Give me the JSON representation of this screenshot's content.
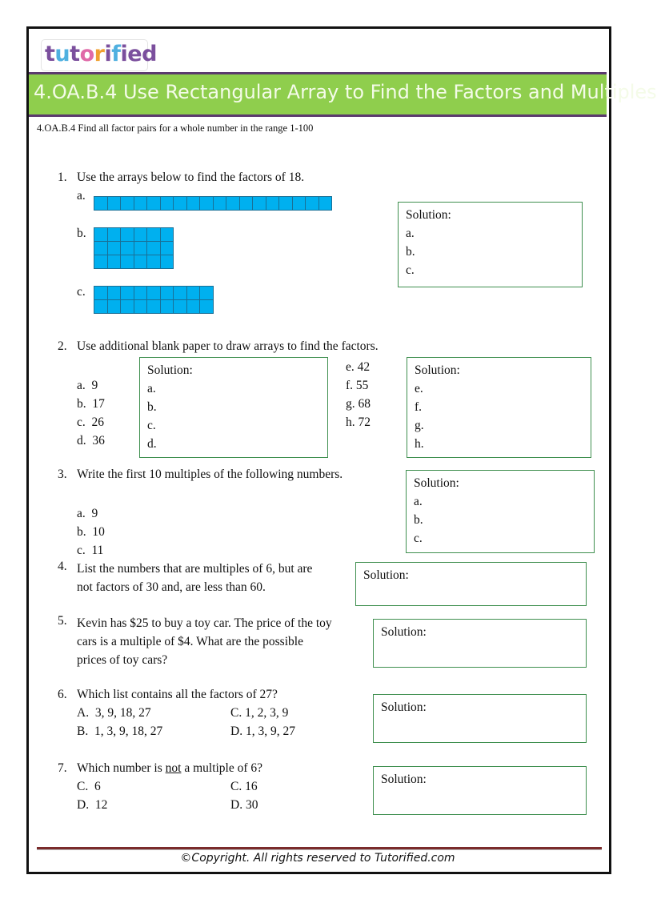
{
  "logo": {
    "letters": [
      "t",
      "u",
      "t",
      "o",
      "r",
      "i",
      "f",
      "i",
      "e",
      "d"
    ],
    "colors": [
      "#7b4f9d",
      "#4fb0e0",
      "#7b4f9d",
      "#e06aa8",
      "#f0a030",
      "#7b4f9d",
      "#4fb0e0",
      "#7b4f9d",
      "#7b4f9d",
      "#7b4f9d"
    ]
  },
  "title": "4.OA.B.4 Use Rectangular Array to Find the Factors and Multiples",
  "standard": "4.OA.B.4 Find all factor pairs for a whole number in the range 1-100",
  "colors": {
    "banner": "#8fce4d",
    "array": "#00b0ef",
    "box_border": "#3f8f4f"
  },
  "q1": {
    "num": "1.",
    "text": "Use the arrays below to find the factors of 18.",
    "labels": [
      "a.",
      "b.",
      "c."
    ],
    "arrays": [
      {
        "cols": 18,
        "rows": 1
      },
      {
        "cols": 6,
        "rows": 3
      },
      {
        "cols": 9,
        "rows": 2
      }
    ],
    "solution": {
      "title": "Solution:",
      "lines": [
        "a.",
        "b.",
        "c."
      ]
    }
  },
  "q2": {
    "num": "2.",
    "text": "Use additional blank paper to draw arrays to find the factors.",
    "items_left": [
      "a.  9",
      "b.  17",
      "c.  26",
      "d.  36"
    ],
    "items_right": [
      "e. 42",
      "f. 55",
      "g. 68",
      "h. 72"
    ],
    "solution1": {
      "title": "Solution:",
      "lines": [
        "a.",
        "b.",
        "c.",
        "d."
      ]
    },
    "solution2": {
      "title": "Solution:",
      "lines": [
        "e.",
        "f.",
        "g.",
        "h."
      ]
    }
  },
  "q3": {
    "num": "3.",
    "text": "Write the first 10 multiples of the following numbers.",
    "items": [
      "a.  9",
      "b.  10",
      "c.  11"
    ],
    "solution": {
      "title": "Solution:",
      "lines": [
        "a.",
        "b.",
        "c."
      ]
    }
  },
  "q4": {
    "num": "4.",
    "lines": [
      "List the numbers that are multiples of 6, but are",
      "not factors of 30 and, are less than 60."
    ],
    "solution": "Solution:"
  },
  "q5": {
    "num": "5.",
    "lines": [
      "Kevin has $25 to buy a toy car. The price of the toy",
      "cars is a multiple of $4. What are the possible",
      "prices of toy cars?"
    ],
    "solution": "Solution:"
  },
  "q6": {
    "num": "6.",
    "text": "Which list contains all the factors of 27?",
    "options": [
      "A.  3, 9, 18, 27",
      "C. 1, 2, 3, 9",
      "B.  1, 3, 9, 18, 27",
      "D. 1, 3, 9, 27"
    ],
    "solution": "Solution:"
  },
  "q7": {
    "num": "7.",
    "text_before": "Which number is ",
    "text_underlined": "not",
    "text_after": " a multiple of 6?",
    "options": [
      "C.  6",
      "C. 16",
      "D.  12",
      "D. 30"
    ],
    "solution": "Solution:"
  },
  "copyright": "©Copyright. All rights reserved to Tutorified.com"
}
